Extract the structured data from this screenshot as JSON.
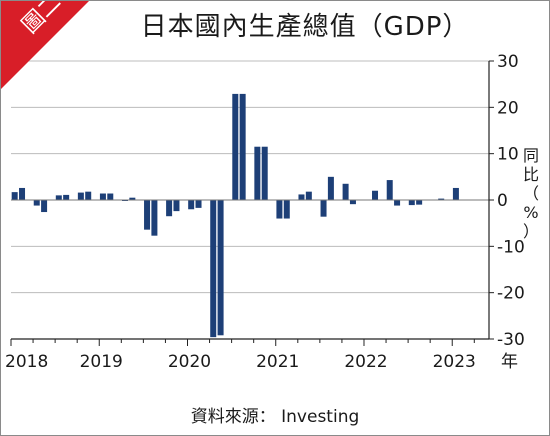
{
  "badge": {
    "label": "圖二",
    "color": "#d81e28"
  },
  "title": "日本國內生產總值（GDP）",
  "source": "資料來源： Investing",
  "colors": {
    "bar": "#1d3f77",
    "grid": "#bcbcbc",
    "zero": "#777777",
    "axis": "#222222"
  },
  "chart_data": {
    "type": "bar",
    "ylabel": "同比（%）",
    "xunit": "年",
    "ylim": [
      -30,
      30
    ],
    "yticks": [
      30,
      20,
      10,
      0,
      -10,
      -20,
      -30
    ],
    "xticks": [
      "2018",
      "2019",
      "2020",
      "2021",
      "2022",
      "2023"
    ],
    "grid": true,
    "categories": [
      "2018-01",
      "2018-02",
      "2018-03",
      "2018-04",
      "2018-05",
      "2018-06",
      "2018-07",
      "2018-08",
      "2018-09",
      "2018-10",
      "2018-11",
      "2018-12",
      "2019-01",
      "2019-02",
      "2019-03",
      "2019-04",
      "2019-05",
      "2019-06",
      "2019-07",
      "2019-08",
      "2019-09",
      "2019-10",
      "2019-11",
      "2019-12",
      "2020-01",
      "2020-02",
      "2020-03",
      "2020-04",
      "2020-05",
      "2020-06",
      "2020-07",
      "2020-08",
      "2020-09",
      "2020-10",
      "2020-11",
      "2020-12",
      "2021-01",
      "2021-02",
      "2021-03",
      "2021-04",
      "2021-05",
      "2021-06",
      "2021-07",
      "2021-08",
      "2021-09",
      "2021-10",
      "2021-11",
      "2021-12",
      "2022-01",
      "2022-02",
      "2022-03",
      "2022-04",
      "2022-05",
      "2022-06",
      "2022-07",
      "2022-08",
      "2022-09",
      "2022-10",
      "2022-11",
      "2022-12",
      "2023-01",
      "2023-02",
      "2023-03",
      "2023-04",
      "2023-05"
    ],
    "values": [
      1.7,
      2.6,
      null,
      -1.2,
      -2.6,
      null,
      1.0,
      1.1,
      null,
      1.6,
      1.8,
      null,
      1.4,
      1.4,
      null,
      -0.2,
      0.5,
      null,
      -6.4,
      -7.7,
      null,
      -3.5,
      -2.4,
      null,
      -2.0,
      -1.7,
      null,
      -29.6,
      -29.2,
      null,
      22.9,
      22.9,
      null,
      11.5,
      11.5,
      null,
      -4.0,
      -4.0,
      null,
      1.2,
      1.8,
      null,
      -3.6,
      5.0,
      null,
      3.5,
      -0.9,
      null,
      null,
      2.0,
      null,
      4.3,
      -1.2,
      null,
      -1.1,
      -1.0,
      null,
      null,
      0.3,
      null,
      2.6,
      null,
      null,
      null,
      null
    ]
  }
}
